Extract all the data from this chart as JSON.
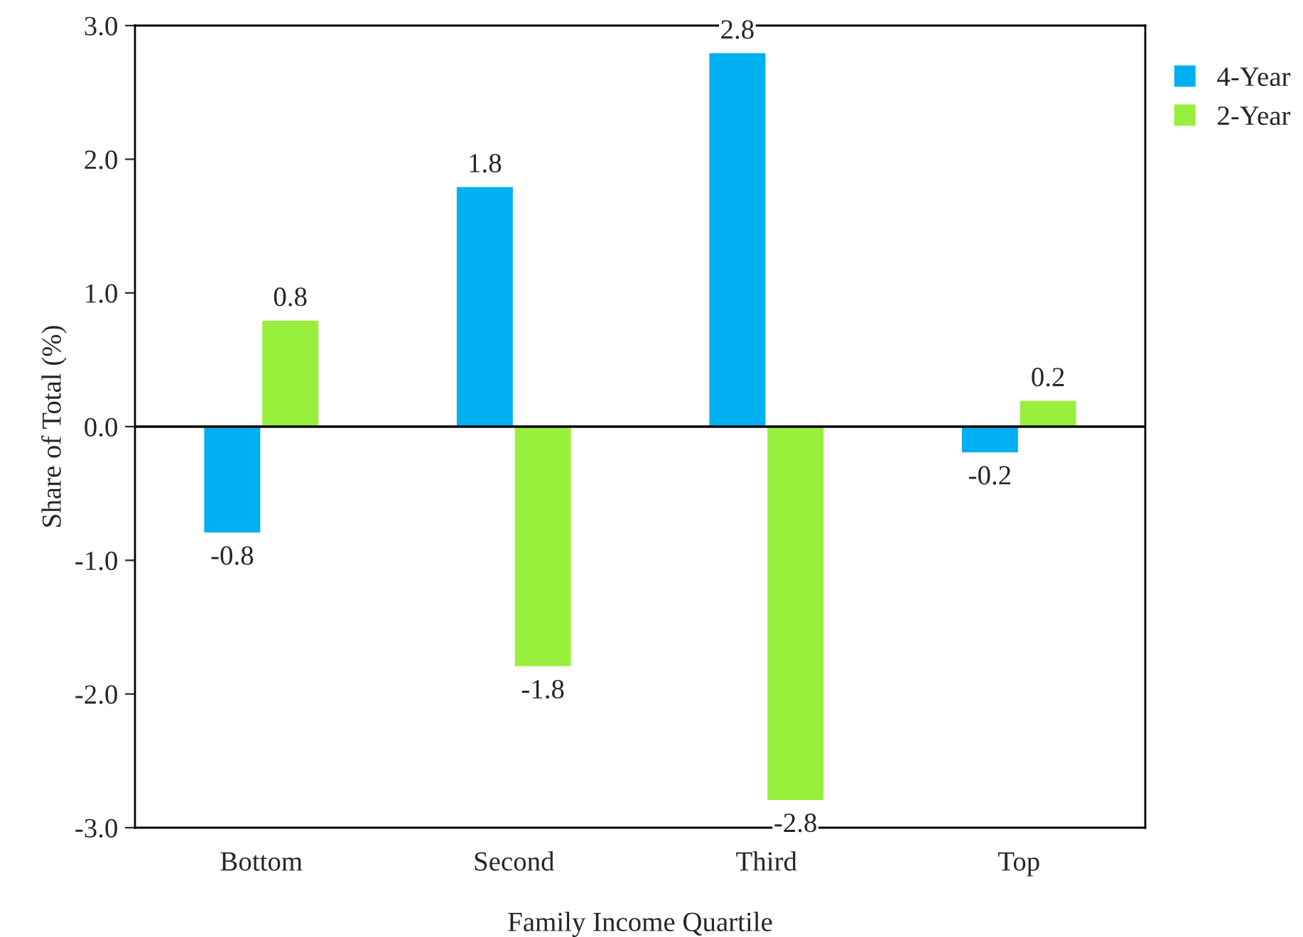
{
  "chart_data": {
    "type": "bar",
    "xlabel": "Family Income Quartile",
    "ylabel": "Share of Total (%)",
    "categories": [
      "Bottom",
      "Second",
      "Third",
      "Top"
    ],
    "series": [
      {
        "name": "4-Year",
        "color": "#00b0f0",
        "values": [
          -0.8,
          1.8,
          2.8,
          -0.2
        ]
      },
      {
        "name": "2-Year",
        "color": "#99f03c",
        "values": [
          0.8,
          -1.8,
          -2.8,
          0.2
        ]
      }
    ],
    "ylim": [
      -3,
      3
    ],
    "yticks": [
      {
        "value": -3,
        "label": "-3.0"
      },
      {
        "value": -2,
        "label": "-2.0"
      },
      {
        "value": -1,
        "label": "-1.0"
      },
      {
        "value": 0,
        "label": "0.0"
      },
      {
        "value": 1,
        "label": "1.0"
      },
      {
        "value": 2,
        "label": "2.0"
      },
      {
        "value": 3,
        "label": "3.0"
      }
    ],
    "data_labels": true,
    "legend": "top right"
  }
}
